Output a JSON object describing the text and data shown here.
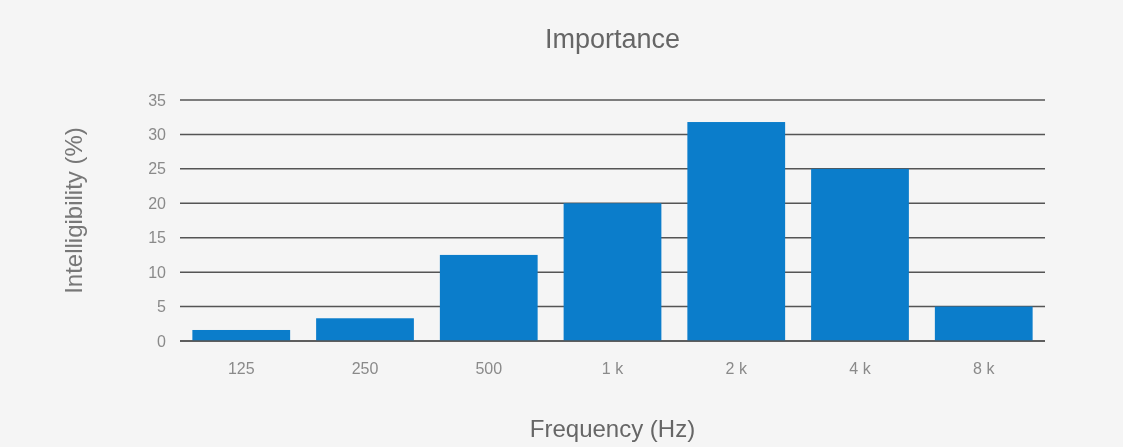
{
  "chart_data": {
    "type": "bar",
    "title": "Importance",
    "xlabel": "Frequency (Hz)",
    "ylabel": "Intelligibility (%)",
    "categories": [
      "125",
      "250",
      "500",
      "1 k",
      "2 k",
      "4 k",
      "8 k"
    ],
    "values": [
      1.6,
      3.3,
      12.5,
      20,
      31.8,
      25,
      5
    ],
    "color": "#0b7dcb",
    "ylim": [
      0,
      35
    ],
    "yticks": [
      0,
      5,
      10,
      15,
      20,
      25,
      30,
      35
    ],
    "grid": "y"
  }
}
